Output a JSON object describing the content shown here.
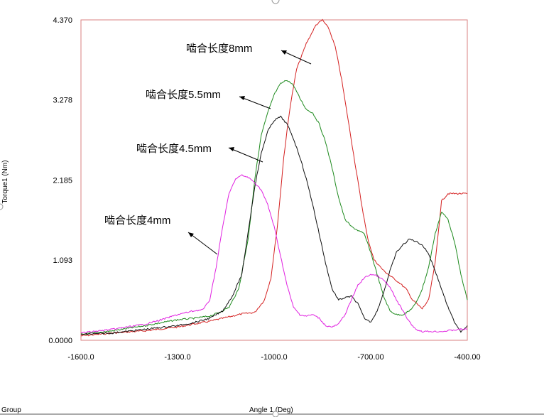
{
  "chart_data": {
    "type": "line",
    "xlabel": "Angle 1 (Deg)",
    "ylabel": "Torque1 (Nm)",
    "xlim": [
      -1600,
      -400
    ],
    "ylim": [
      0,
      4.37
    ],
    "x_tick_labels": [
      "-1600.0",
      "-1300.0",
      "-1000.0",
      "-700.00",
      "-400.00"
    ],
    "x_tick_values": [
      -1600,
      -1300,
      -1000,
      -700,
      -400
    ],
    "y_tick_labels": [
      "0.0000",
      "1.093",
      "2.185",
      "3.278",
      "4.370"
    ],
    "y_tick_values": [
      0,
      1.093,
      2.185,
      3.278,
      4.37
    ],
    "colors": {
      "frame": "#d98080",
      "red": "#d42020",
      "green": "#1e8a1e",
      "black": "#111111",
      "magenta": "#e020e0"
    },
    "series": [
      {
        "name": "啮合长度8mm",
        "color": "red",
        "x": [
          -1600,
          -1500,
          -1400,
          -1300,
          -1200,
          -1100,
          -1060,
          -1030,
          -1010,
          -990,
          -970,
          -950,
          -930,
          -900,
          -870,
          -850,
          -830,
          -810,
          -790,
          -770,
          -750,
          -730,
          -710,
          -690,
          -660,
          -640,
          -610,
          -590,
          -570,
          -540,
          -520,
          -500,
          -480,
          -460,
          -440,
          -420,
          -400
        ],
        "y": [
          0.06,
          0.1,
          0.13,
          0.18,
          0.26,
          0.36,
          0.38,
          0.55,
          0.85,
          1.55,
          2.5,
          3.2,
          3.7,
          4.05,
          4.3,
          4.37,
          4.25,
          4.0,
          3.55,
          3.0,
          2.45,
          1.9,
          1.4,
          1.1,
          0.95,
          0.88,
          0.78,
          0.7,
          0.55,
          0.43,
          0.55,
          1.05,
          1.9,
          2.0,
          2.0,
          2.0,
          2.0
        ]
      },
      {
        "name": "啮合长度5.5mm",
        "color": "green",
        "x": [
          -1600,
          -1500,
          -1400,
          -1300,
          -1250,
          -1200,
          -1170,
          -1140,
          -1110,
          -1080,
          -1060,
          -1040,
          -1020,
          -1000,
          -980,
          -960,
          -940,
          -920,
          -900,
          -880,
          -860,
          -840,
          -820,
          -800,
          -780,
          -760,
          -740,
          -720,
          -700,
          -680,
          -660,
          -640,
          -620,
          -600,
          -580,
          -560,
          -540,
          -520,
          -500,
          -480,
          -460,
          -440,
          -420,
          -400
        ],
        "y": [
          0.08,
          0.13,
          0.2,
          0.28,
          0.3,
          0.33,
          0.38,
          0.45,
          0.7,
          1.4,
          2.2,
          2.8,
          3.1,
          3.35,
          3.5,
          3.55,
          3.48,
          3.3,
          3.15,
          3.1,
          2.95,
          2.7,
          2.35,
          1.95,
          1.65,
          1.55,
          1.5,
          1.45,
          1.2,
          0.9,
          0.6,
          0.4,
          0.35,
          0.35,
          0.4,
          0.5,
          0.7,
          1.0,
          1.45,
          1.75,
          1.65,
          1.35,
          0.9,
          0.55
        ]
      },
      {
        "name": "啮合长度4.5mm",
        "color": "black",
        "x": [
          -1600,
          -1500,
          -1400,
          -1300,
          -1250,
          -1200,
          -1160,
          -1130,
          -1100,
          -1080,
          -1060,
          -1040,
          -1020,
          -1000,
          -980,
          -960,
          -940,
          -920,
          -900,
          -880,
          -860,
          -840,
          -820,
          -800,
          -780,
          -760,
          -740,
          -720,
          -700,
          -680,
          -660,
          -640,
          -620,
          -600,
          -580,
          -560,
          -540,
          -520,
          -500,
          -480,
          -460,
          -440,
          -420,
          -400
        ],
        "y": [
          0.08,
          0.1,
          0.15,
          0.2,
          0.24,
          0.3,
          0.4,
          0.6,
          0.9,
          1.5,
          2.1,
          2.55,
          2.85,
          3.0,
          3.05,
          2.95,
          2.75,
          2.5,
          2.2,
          1.85,
          1.45,
          1.05,
          0.7,
          0.55,
          0.58,
          0.6,
          0.5,
          0.3,
          0.25,
          0.4,
          0.65,
          0.95,
          1.2,
          1.3,
          1.38,
          1.35,
          1.3,
          1.18,
          0.95,
          0.7,
          0.45,
          0.25,
          0.12,
          0.2
        ]
      },
      {
        "name": "啮合长度4mm",
        "color": "magenta",
        "x": [
          -1600,
          -1500,
          -1400,
          -1350,
          -1300,
          -1250,
          -1220,
          -1200,
          -1180,
          -1160,
          -1140,
          -1120,
          -1100,
          -1080,
          -1060,
          -1040,
          -1020,
          -1000,
          -980,
          -960,
          -940,
          -920,
          -900,
          -880,
          -860,
          -840,
          -820,
          -800,
          -780,
          -760,
          -740,
          -720,
          -700,
          -680,
          -660,
          -640,
          -620,
          -600,
          -580,
          -560,
          -540,
          -520,
          -500,
          -480,
          -460,
          -440,
          -420,
          -400
        ],
        "y": [
          0.1,
          0.15,
          0.22,
          0.28,
          0.35,
          0.4,
          0.42,
          0.55,
          1.0,
          1.55,
          2.0,
          2.2,
          2.25,
          2.22,
          2.15,
          2.05,
          1.85,
          1.55,
          1.15,
          0.75,
          0.45,
          0.35,
          0.33,
          0.35,
          0.3,
          0.2,
          0.18,
          0.22,
          0.35,
          0.55,
          0.75,
          0.85,
          0.9,
          0.88,
          0.82,
          0.72,
          0.55,
          0.4,
          0.25,
          0.15,
          0.12,
          0.12,
          0.12,
          0.12,
          0.13,
          0.14,
          0.15,
          0.15
        ]
      }
    ],
    "annotations": [
      {
        "text": "啮合长度8mm",
        "target_series": "啮合长度8mm"
      },
      {
        "text": "啮合长度5.5mm",
        "target_series": "啮合长度5.5mm"
      },
      {
        "text": "啮合长度4.5mm",
        "target_series": "啮合长度4.5mm"
      },
      {
        "text": "啮合长度4mm",
        "target_series": "啮合长度4mm"
      }
    ],
    "footer": {
      "group_label": "Group"
    }
  }
}
